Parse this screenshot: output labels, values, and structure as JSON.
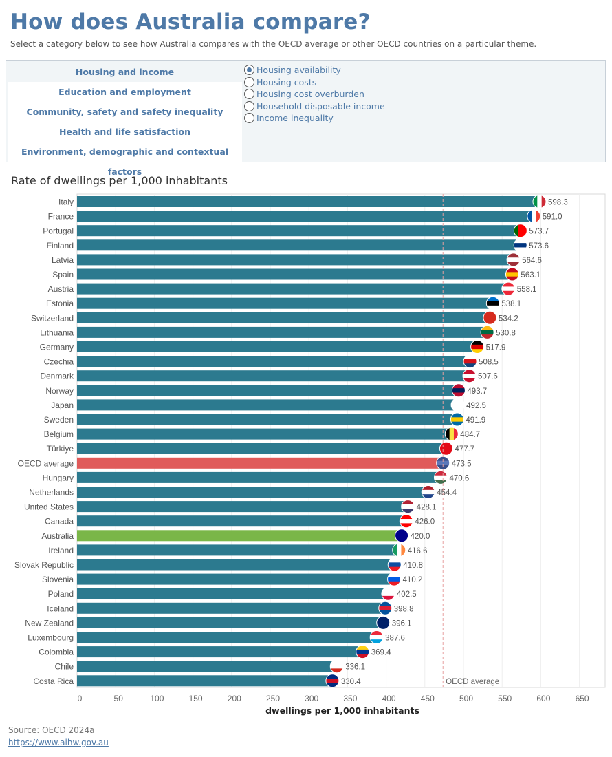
{
  "header": {
    "title": "How does Australia compare?",
    "subtitle": "Select a category below to see how Australia compares with the OECD average or other OECD countries on a particular theme."
  },
  "categories": [
    {
      "label": "Housing and income",
      "selected": true
    },
    {
      "label": "Education and employment",
      "selected": false
    },
    {
      "label": "Community, safety and safety inequality",
      "selected": false
    },
    {
      "label": "Health and life satisfaction",
      "selected": false
    },
    {
      "label": "Environment, demographic and contextual factors",
      "selected": false
    }
  ],
  "measures": [
    {
      "label": "Housing availability",
      "checked": true
    },
    {
      "label": "Housing costs",
      "checked": false
    },
    {
      "label": "Housing cost overburden",
      "checked": false
    },
    {
      "label": "Household disposable income",
      "checked": false
    },
    {
      "label": "Income inequality",
      "checked": false
    }
  ],
  "chart_data": {
    "type": "bar",
    "orientation": "horizontal",
    "title": "Rate of dwellings per 1,000 inhabitants",
    "xlabel": "dwellings per 1,000 inhabitants",
    "ylabel": "",
    "xlim": [
      0,
      650
    ],
    "xticks": [
      0,
      50,
      100,
      150,
      200,
      250,
      300,
      350,
      400,
      450,
      500,
      550,
      600,
      650
    ],
    "grid": true,
    "reference_line": {
      "label": "OECD average",
      "value": 473.5
    },
    "colors": {
      "default": "#2c7a8f",
      "oecd": "#e05a5a",
      "australia": "#7ab648"
    },
    "categories": [
      "Italy",
      "France",
      "Portugal",
      "Finland",
      "Latvia",
      "Spain",
      "Austria",
      "Estonia",
      "Switzerland",
      "Lithuania",
      "Germany",
      "Czechia",
      "Denmark",
      "Norway",
      "Japan",
      "Sweden",
      "Belgium",
      "Türkiye",
      "OECD average",
      "Hungary",
      "Netherlands",
      "United States",
      "Canada",
      "Australia",
      "Ireland",
      "Slovak Republic",
      "Slovenia",
      "Poland",
      "Iceland",
      "New Zealand",
      "Luxembourg",
      "Colombia",
      "Chile",
      "Costa Rica"
    ],
    "values": [
      598.3,
      591.0,
      573.7,
      573.6,
      564.6,
      563.1,
      558.1,
      538.1,
      534.2,
      530.8,
      517.9,
      508.5,
      507.6,
      493.7,
      492.5,
      491.9,
      484.7,
      477.7,
      473.5,
      470.6,
      454.4,
      428.1,
      426.0,
      420.0,
      416.6,
      410.8,
      410.2,
      402.5,
      398.8,
      396.1,
      387.6,
      369.4,
      336.1,
      330.4
    ],
    "value_labels": [
      "598.3",
      "591.0",
      "573.7",
      "573.6",
      "564.6",
      "563.1",
      "558.1",
      "538.1",
      "534.2",
      "530.8",
      "517.9",
      "508.5",
      "507.6",
      "493.7",
      "492.5",
      "491.9",
      "484.7",
      "477.7",
      "473.5",
      "470.6",
      "454.4",
      "428.1",
      "426.0",
      "420.0",
      "416.6",
      "410.8",
      "410.2",
      "402.5",
      "398.8",
      "396.1",
      "387.6",
      "369.4",
      "336.1",
      "330.4"
    ],
    "flag_icons": [
      "italy-flag-icon",
      "france-flag-icon",
      "portugal-flag-icon",
      "finland-flag-icon",
      "latvia-flag-icon",
      "spain-flag-icon",
      "austria-flag-icon",
      "estonia-flag-icon",
      "switzerland-flag-icon",
      "lithuania-flag-icon",
      "germany-flag-icon",
      "czechia-flag-icon",
      "denmark-flag-icon",
      "norway-flag-icon",
      "japan-flag-icon",
      "sweden-flag-icon",
      "belgium-flag-icon",
      "turkiye-flag-icon",
      "oecd-globe-icon",
      "hungary-flag-icon",
      "netherlands-flag-icon",
      "united-states-flag-icon",
      "canada-flag-icon",
      "australia-flag-icon",
      "ireland-flag-icon",
      "slovak-republic-flag-icon",
      "slovenia-flag-icon",
      "poland-flag-icon",
      "iceland-flag-icon",
      "new-zealand-flag-icon",
      "luxembourg-flag-icon",
      "colombia-flag-icon",
      "chile-flag-icon",
      "costa-rica-flag-icon"
    ]
  },
  "footer": {
    "source": "Source: OECD 2024a",
    "link": "https://www.aihw.gov.au"
  }
}
